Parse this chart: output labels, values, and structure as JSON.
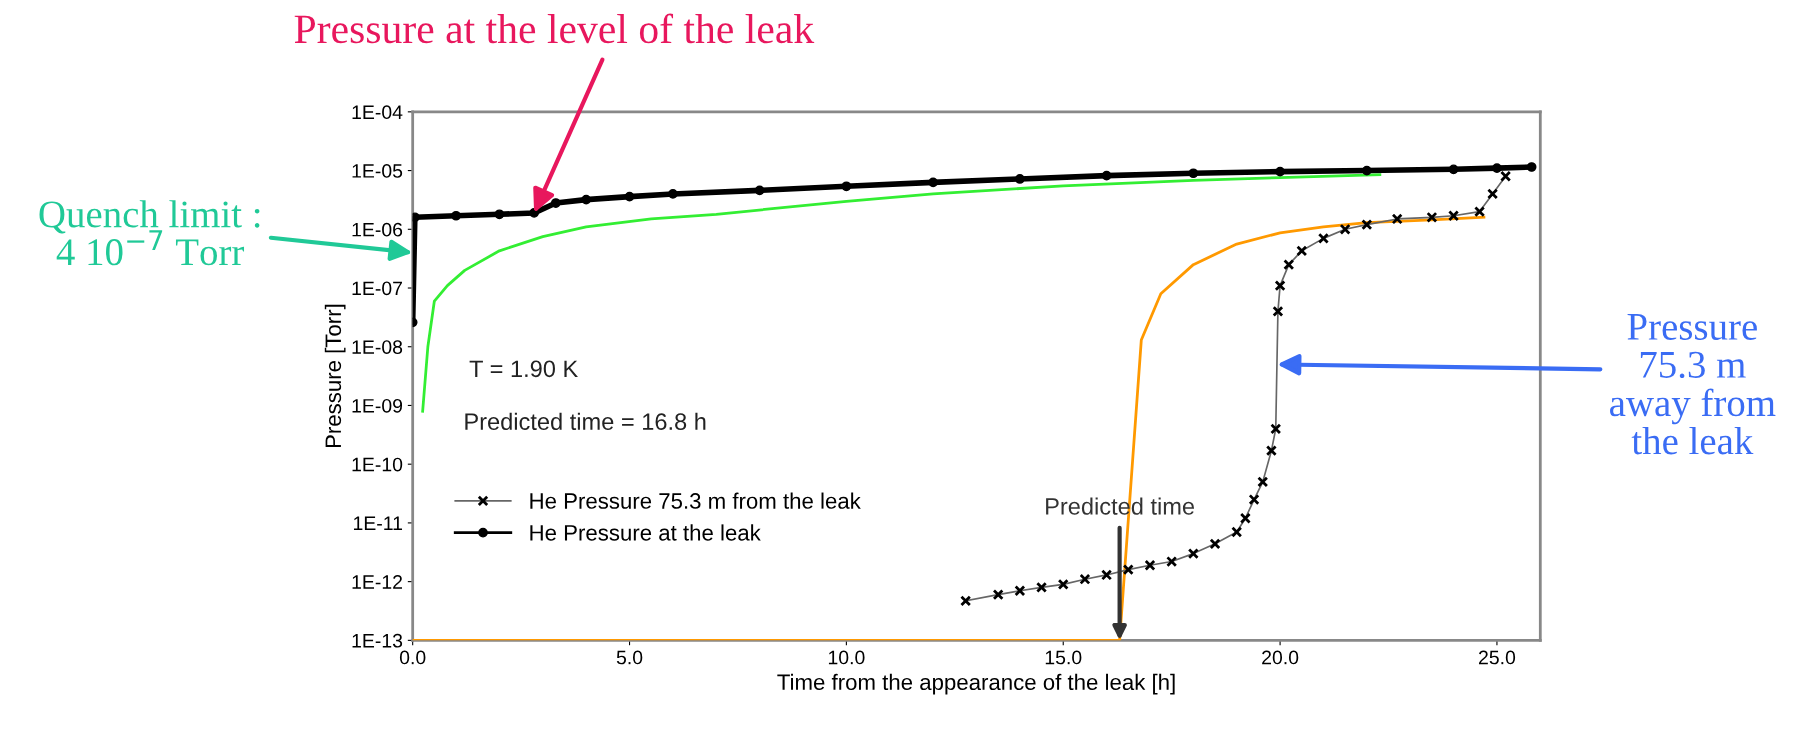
{
  "chart_data": {
    "type": "line",
    "xlabel": "Time from the appearance of the leak [h]",
    "ylabel": "Pressure [Torr]",
    "log": "y",
    "xlim": [
      0,
      26
    ],
    "xticks": [
      {
        "value": 0,
        "label": "0.0"
      },
      {
        "value": 5,
        "label": "5.0"
      },
      {
        "value": 10,
        "label": "10.0"
      },
      {
        "value": 15,
        "label": "15.0"
      },
      {
        "value": 20,
        "label": "20.0"
      },
      {
        "value": 25,
        "label": "25.0"
      }
    ],
    "ylim": [
      1e-13,
      0.0001
    ],
    "yticks": [
      {
        "value": 1e-13,
        "label": "1E-13"
      },
      {
        "value": 1e-12,
        "label": "1E-12"
      },
      {
        "value": 1e-11,
        "label": "1E-11"
      },
      {
        "value": 1e-10,
        "label": "1E-10"
      },
      {
        "value": 1e-09,
        "label": "1E-09"
      },
      {
        "value": 1e-08,
        "label": "1E-08"
      },
      {
        "value": 1e-07,
        "label": "1E-07"
      },
      {
        "value": 1e-06,
        "label": "1E-06"
      },
      {
        "value": 1e-05,
        "label": "1E-05"
      },
      {
        "value": 0.0001,
        "label": "1E-04"
      }
    ],
    "grid": false,
    "legend": "left",
    "series": [
      {
        "color": "#33ee33",
        "marker": "none",
        "x": [
          0.23,
          0.35,
          0.5,
          0.8,
          1.2,
          2,
          3,
          4,
          5.5,
          7,
          10,
          12,
          15,
          18,
          20,
          22.3
        ],
        "values": [
          8e-10,
          1e-08,
          6e-08,
          1.1e-07,
          2e-07,
          4.3e-07,
          7.5e-07,
          1.1e-06,
          1.5e-06,
          1.8e-06,
          3e-06,
          4e-06,
          5.5e-06,
          6.8e-06,
          7.6e-06,
          8.5e-06
        ]
      },
      {
        "color": "#ff9900",
        "marker": "none",
        "x": [
          0,
          16.3,
          16.8,
          17.25,
          18,
          19,
          20,
          21,
          22,
          23.5,
          24.7
        ],
        "values": [
          1e-13,
          1e-13,
          1.3e-08,
          8e-08,
          2.5e-07,
          5.6e-07,
          8.7e-07,
          1.1e-06,
          1.3e-06,
          1.45e-06,
          1.6e-06
        ]
      },
      {
        "name": "He Pressure 75.3 m from the leak",
        "color": "#000000",
        "marker": "cross",
        "x": [
          12.75,
          13.5,
          14,
          14.5,
          15,
          15.5,
          16,
          16.5,
          17,
          17.5,
          18,
          18.5,
          19,
          19.2,
          19.4,
          19.6,
          19.8,
          19.9,
          19.95,
          20,
          20.2,
          20.5,
          21,
          21.5,
          22,
          22.7,
          23.5,
          24,
          24.6,
          24.9,
          25.2
        ],
        "values": [
          4.7e-13,
          6e-13,
          7e-13,
          8e-13,
          9e-13,
          1.1e-12,
          1.3e-12,
          1.6e-12,
          1.9e-12,
          2.2e-12,
          3e-12,
          4.4e-12,
          7e-12,
          1.2e-11,
          2.5e-11,
          5e-11,
          1.7e-10,
          4e-10,
          4e-08,
          1.1e-07,
          2.5e-07,
          4.3e-07,
          7e-07,
          1e-06,
          1.2e-06,
          1.5e-06,
          1.6e-06,
          1.7e-06,
          2e-06,
          4e-06,
          8e-06
        ]
      },
      {
        "name": "He Pressure at the leak",
        "color": "#000000",
        "marker": "circle",
        "x": [
          0,
          0.05,
          1,
          2,
          2.8,
          3.3,
          4,
          5,
          6,
          8,
          10,
          12,
          14,
          16,
          18,
          20,
          22,
          24,
          25,
          25.8
        ],
        "values": [
          2.6e-08,
          1.6e-06,
          1.7e-06,
          1.8e-06,
          1.9e-06,
          2.8e-06,
          3.2e-06,
          3.6e-06,
          4e-06,
          4.6e-06,
          5.4e-06,
          6.3e-06,
          7.2e-06,
          8.2e-06,
          9e-06,
          9.6e-06,
          1e-05,
          1.05e-05,
          1.1e-05,
          1.15e-05
        ]
      }
    ],
    "annotations": [
      {
        "text": "Pressure at the level of the leak",
        "x": 2.8,
        "y": 1.9e-06
      },
      {
        "text": "Quench limit :\n4 10$^{−7}$ Torr",
        "x": 0,
        "y": 4e-07
      },
      "T = 1.90 K",
      "Predicted time = 16.8 h",
      {
        "text": "Predicted time",
        "x": 16.3,
        "y": 1e-13
      },
      {
        "text": "Pressure\n75.3 m\naway from\nthe leak",
        "x": 19.93,
        "y": 5e-09
      }
    ]
  }
}
